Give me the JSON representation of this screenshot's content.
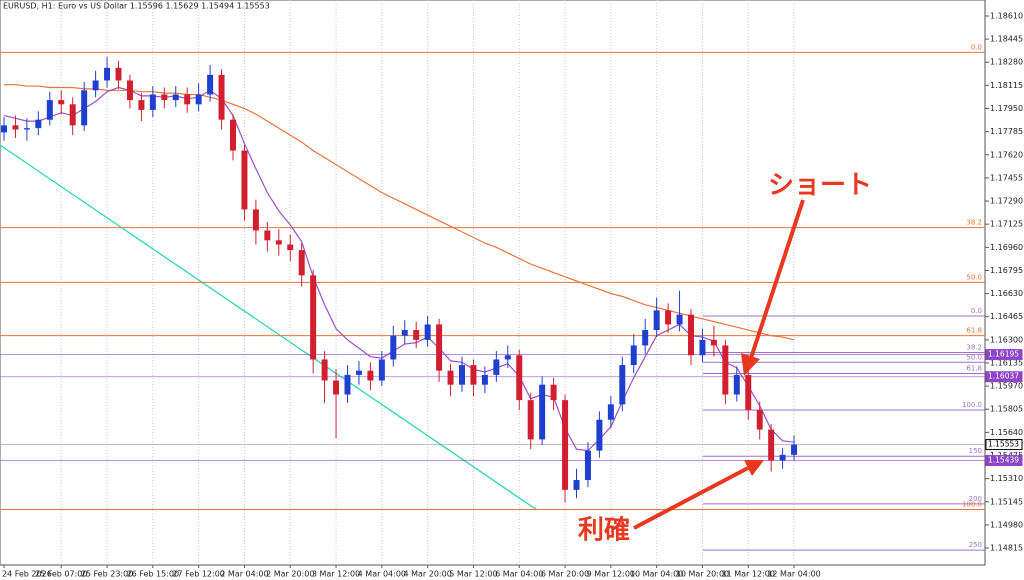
{
  "chart_data": {
    "type": "candlestick",
    "title": "EURUSD, H1:  Euro vs US Dollar  1.15596 1.15629 1.15494 1.15553",
    "categories": [
      "24 Feb 2026",
      null,
      null,
      null,
      null,
      "25 Feb 07:00",
      null,
      null,
      null,
      "25 Feb 23:00",
      null,
      null,
      null,
      "26 Feb 15:00",
      null,
      null,
      null,
      "27 Feb 12:00",
      null,
      null,
      null,
      "2 Mar 04:00",
      null,
      null,
      null,
      "2 Mar 20:00",
      null,
      null,
      null,
      "3 Mar 12:00",
      null,
      null,
      null,
      "4 Mar 04:00",
      null,
      null,
      null,
      "4 Mar 20:00",
      null,
      null,
      null,
      "5 Mar 12:00",
      null,
      null,
      null,
      "6 Mar 04:00",
      null,
      null,
      null,
      "6 Mar 20:00",
      null,
      null,
      null,
      "9 Mar 12:00",
      null,
      null,
      null,
      "10 Mar 04:00",
      null,
      null,
      null,
      "10 Mar 20:00",
      null,
      null,
      null,
      "11 Mar 12:00",
      null,
      null,
      null,
      "12 Mar 04:00"
    ],
    "open": [
      1.1778,
      1.1783,
      1.178,
      1.1781,
      1.1787,
      1.1801,
      1.1798,
      1.1783,
      1.1808,
      1.1815,
      1.1824,
      1.1815,
      1.1801,
      1.1794,
      1.1805,
      1.1801,
      1.1805,
      1.1798,
      1.1805,
      1.1819,
      1.1787,
      1.1765,
      1.1723,
      1.1708,
      1.1701,
      1.1698,
      1.1694,
      1.1676,
      1.1616,
      1.1601,
      1.1591,
      1.1605,
      1.1608,
      1.1601,
      1.1616,
      1.1633,
      1.1637,
      1.163,
      1.1641,
      1.1608,
      1.1598,
      1.1612,
      1.1598,
      1.1605,
      1.1616,
      1.1619,
      1.1587,
      1.1559,
      1.1598,
      1.1587,
      1.1523,
      1.153,
      1.1551,
      1.1573,
      1.1584,
      1.1612,
      1.1626,
      1.1637,
      1.1651,
      1.1641,
      1.1648,
      1.1619,
      1.163,
      1.1626,
      1.1591,
      1.1605,
      1.158,
      1.1566,
      1.1544,
      1.1548
    ],
    "high": [
      1.1789,
      1.179,
      1.1788,
      1.1793,
      1.1807,
      1.1808,
      1.1803,
      1.1814,
      1.1822,
      1.1832,
      1.1829,
      1.1819,
      1.1806,
      1.1811,
      1.181,
      1.1811,
      1.181,
      1.1813,
      1.1826,
      1.1823,
      1.1791,
      1.1769,
      1.173,
      1.1714,
      1.1709,
      1.1705,
      1.1699,
      1.168,
      1.1622,
      1.1609,
      1.1612,
      1.1615,
      1.1614,
      1.1622,
      1.164,
      1.1644,
      1.1643,
      1.1647,
      1.1645,
      1.1613,
      1.1618,
      1.1616,
      1.1611,
      1.1622,
      1.1626,
      1.1623,
      1.1592,
      1.1604,
      1.1603,
      1.1591,
      1.1538,
      1.1557,
      1.1579,
      1.159,
      1.1618,
      1.1634,
      1.1645,
      1.166,
      1.1656,
      1.1665,
      1.1652,
      1.1638,
      1.164,
      1.163,
      1.1611,
      1.1609,
      1.1586,
      1.157,
      1.1553,
      1.1562
    ],
    "low": [
      1.1772,
      1.1774,
      1.1772,
      1.1776,
      1.1783,
      1.1791,
      1.1776,
      1.1779,
      1.1803,
      1.181,
      1.1809,
      1.1795,
      1.1786,
      1.1789,
      1.1795,
      1.1796,
      1.1792,
      1.1793,
      1.18,
      1.178,
      1.1758,
      1.1715,
      1.1698,
      1.1693,
      1.169,
      1.1686,
      1.1668,
      1.1606,
      1.1585,
      1.156,
      1.1585,
      1.1598,
      1.1594,
      1.1597,
      1.1611,
      1.1627,
      1.1624,
      1.1625,
      1.16,
      1.159,
      1.1593,
      1.159,
      1.1592,
      1.16,
      1.161,
      1.158,
      1.1552,
      1.1555,
      1.158,
      1.1514,
      1.1517,
      1.1525,
      1.1546,
      1.1567,
      1.1579,
      1.1606,
      1.162,
      1.1632,
      1.1635,
      1.1636,
      1.1612,
      1.1614,
      1.1618,
      1.1584,
      1.1586,
      1.1573,
      1.1559,
      1.1536,
      1.1538,
      1.1544
    ],
    "close": [
      1.1783,
      1.178,
      1.1781,
      1.1787,
      1.1801,
      1.1798,
      1.1783,
      1.1808,
      1.1815,
      1.1824,
      1.1815,
      1.1801,
      1.1794,
      1.1805,
      1.1801,
      1.1805,
      1.1798,
      1.1805,
      1.1819,
      1.1787,
      1.1765,
      1.1723,
      1.1708,
      1.1701,
      1.1698,
      1.1694,
      1.1676,
      1.1616,
      1.1601,
      1.1591,
      1.1605,
      1.1608,
      1.1601,
      1.1616,
      1.1633,
      1.1637,
      1.163,
      1.1641,
      1.1608,
      1.1598,
      1.1612,
      1.1598,
      1.1605,
      1.1616,
      1.1619,
      1.1587,
      1.1559,
      1.1598,
      1.1587,
      1.1523,
      1.153,
      1.1551,
      1.1573,
      1.1584,
      1.1612,
      1.1626,
      1.1637,
      1.1651,
      1.1641,
      1.1648,
      1.1619,
      1.163,
      1.1626,
      1.1591,
      1.1605,
      1.158,
      1.1566,
      1.1544,
      1.1548,
      1.15553
    ],
    "up_color": "#1f3fcf",
    "down_color": "#d21f2f",
    "series": [
      {
        "color": "#e8743b",
        "values": [
          1.1812,
          1.1812,
          1.1811,
          1.1811,
          1.181,
          1.181,
          1.181,
          1.1809,
          1.1809,
          1.1808,
          1.1808,
          1.1808,
          1.1807,
          1.1807,
          1.1806,
          1.1806,
          1.1805,
          1.1805,
          1.1803,
          1.1801,
          1.1798,
          1.1795,
          1.1791,
          1.1786,
          1.1781,
          1.1776,
          1.1771,
          1.1765,
          1.176,
          1.1755,
          1.175,
          1.1745,
          1.174,
          1.1735,
          1.1731,
          1.1727,
          1.1723,
          1.1719,
          1.1715,
          1.1711,
          1.1707,
          1.1703,
          1.1699,
          1.1696,
          1.1692,
          1.1688,
          1.1684,
          1.1681,
          1.1678,
          1.1675,
          1.1672,
          1.1669,
          1.1666,
          1.1663,
          1.1661,
          1.1658,
          1.1655,
          1.1653,
          1.1651,
          1.1649,
          1.1647,
          1.1645,
          1.1643,
          1.1641,
          1.1639,
          1.1637,
          1.1635,
          1.1633,
          1.1632,
          1.163
        ]
      },
      {
        "color": "#9c4fc4",
        "values": [
          1.179,
          1.1788,
          1.1786,
          1.1786,
          1.1789,
          1.1792,
          1.179,
          1.1795,
          1.18,
          1.1807,
          1.181,
          1.1808,
          1.1804,
          1.1804,
          1.1803,
          1.1804,
          1.1802,
          1.1803,
          1.1808,
          1.1802,
          1.179,
          1.177,
          1.1752,
          1.1735,
          1.1722,
          1.1712,
          1.17,
          1.1675,
          1.1655,
          1.1638,
          1.163,
          1.1624,
          1.1618,
          1.1617,
          1.1622,
          1.1627,
          1.1628,
          1.1632,
          1.1624,
          1.1615,
          1.1614,
          1.1609,
          1.1607,
          1.161,
          1.1613,
          1.1604,
          1.1588,
          1.1591,
          1.1589,
          1.1567,
          1.1552,
          1.1551,
          1.1559,
          1.1568,
          1.1586,
          1.1603,
          1.1618,
          1.1633,
          1.1637,
          1.1641,
          1.1633,
          1.1632,
          1.1629,
          1.1614,
          1.161,
          1.1597,
          1.1583,
          1.1566,
          1.1558,
          1.1557
        ]
      }
    ],
    "fib_levels_1": {
      "color": "#e8743b",
      "levels": [
        {
          "label": "0.0",
          "value": 1.1835
        },
        {
          "label": "38.2",
          "value": 1.171
        },
        {
          "label": "50.0",
          "value": 1.1671
        },
        {
          "label": "61.8",
          "value": 1.1633
        },
        {
          "label": "100.0",
          "value": 1.1509
        }
      ]
    },
    "fib_levels_2": {
      "color": "#a070c8",
      "levels": [
        {
          "label": "0.0",
          "value": 1.1647
        },
        {
          "label": "38.2",
          "value": 1.1621
        },
        {
          "label": "50.0",
          "value": 1.1614
        },
        {
          "label": "61.8",
          "value": 1.1606
        },
        {
          "label": "100.0",
          "value": 1.158
        },
        {
          "label": "150",
          "value": 1.1547
        },
        {
          "label": "200",
          "value": 1.1513
        },
        {
          "label": "250",
          "value": 1.148
        }
      ]
    },
    "price_tags": [
      1.16195,
      1.16037,
      1.15553,
      1.15439
    ],
    "price_tag_colors": [
      "#8e44c8",
      "#8e44c8",
      "#ffffff",
      "#8e44c8"
    ],
    "ylim": [
      1.14694,
      1.18724
    ],
    "yticks": [
      {
        "value": 1.1861,
        "label": "1.18610"
      },
      1.18445,
      {
        "value": 1.1828,
        "label": "1.18280"
      },
      1.18115,
      {
        "value": 1.1795,
        "label": "1.17950"
      },
      1.17785,
      {
        "value": 1.1762,
        "label": "1.17620"
      },
      1.17455,
      {
        "value": 1.1729,
        "label": "1.17290"
      },
      1.17125,
      {
        "value": 1.1696,
        "label": "1.16960"
      },
      1.16795,
      {
        "value": 1.1663,
        "label": "1.16630"
      },
      1.16465,
      {
        "value": 1.163,
        "label": "1.16300"
      },
      1.16135,
      {
        "value": 1.1597,
        "label": "1.15970"
      },
      1.15805,
      {
        "value": 1.1564,
        "label": "1.15640"
      },
      1.15475,
      {
        "value": 1.1531,
        "label": "1.15310"
      },
      1.15145,
      {
        "value": 1.1498,
        "label": "1.14980"
      },
      1.14815
    ],
    "grid": "vertical",
    "annotations": [
      "ショート",
      "利確"
    ]
  }
}
